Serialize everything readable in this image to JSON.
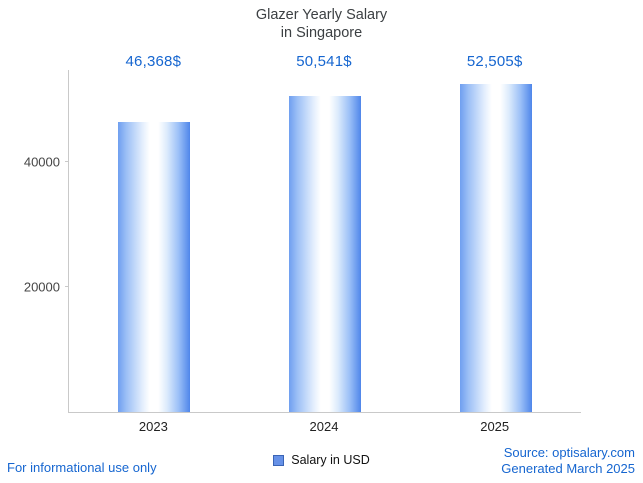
{
  "page_title_display": "Glazer Yearly Salary\nin Singapore",
  "chart_data": {
    "type": "bar",
    "title": "Glazer Yearly Salary in Singapore",
    "categories": [
      "2023",
      "2024",
      "2025"
    ],
    "values": [
      46368,
      50541,
      52505
    ],
    "value_labels": [
      "46,368$",
      "50,541$",
      "52,505$"
    ],
    "xlabel": "",
    "ylabel": "",
    "ylim": [
      0,
      54720
    ],
    "yticks": [
      20000,
      40000
    ],
    "grid": false,
    "legend_position": "bottom",
    "series_name": "Salary in USD",
    "bar_gradient_edge_left": "#6f9ff0",
    "bar_gradient_center": "#ffffff",
    "bar_gradient_edge_right": "#4f86ea"
  },
  "legend": {
    "label": "Salary in USD",
    "swatch_color": "#6691e7"
  },
  "footer": {
    "disclaimer": "For informational use only",
    "source": "Source: optisalary.com",
    "generated": "Generated March 2025"
  },
  "colors": {
    "accent_blue_text": "#1666d0",
    "title_text": "#3c4043",
    "axis_line": "#c9c9c9"
  }
}
